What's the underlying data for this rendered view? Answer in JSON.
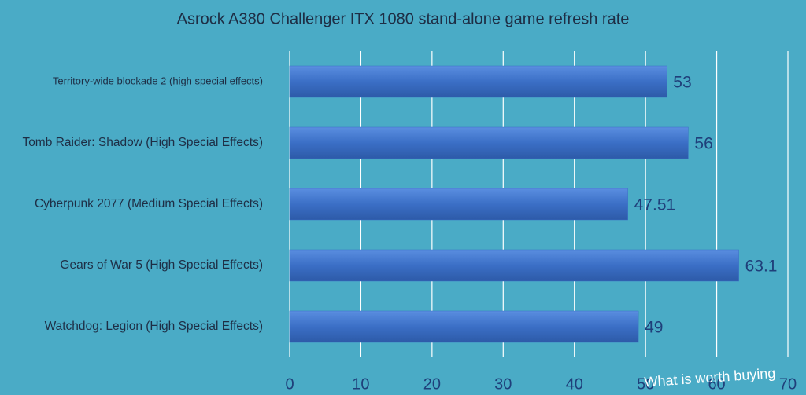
{
  "chart_data": {
    "type": "bar",
    "orientation": "horizontal",
    "title": "Asrock A380 Challenger ITX 1080 stand-alone game refresh rate",
    "categories": [
      "Territory-wide blockade 2 (high special effects)",
      "Tomb Raider: Shadow (High Special Effects)",
      "Cyberpunk 2077 (Medium Special Effects)",
      "Gears of War 5 (High Special Effects)",
      "Watchdog: Legion (High Special Effects)"
    ],
    "values": [
      53,
      56,
      47.51,
      63.1,
      49
    ],
    "color": "#3b6fc6",
    "xlim": [
      0,
      70
    ],
    "xticks": [
      0,
      10,
      20,
      30,
      40,
      50,
      60,
      70
    ],
    "grid": true,
    "watermark": "What is worth buying"
  }
}
